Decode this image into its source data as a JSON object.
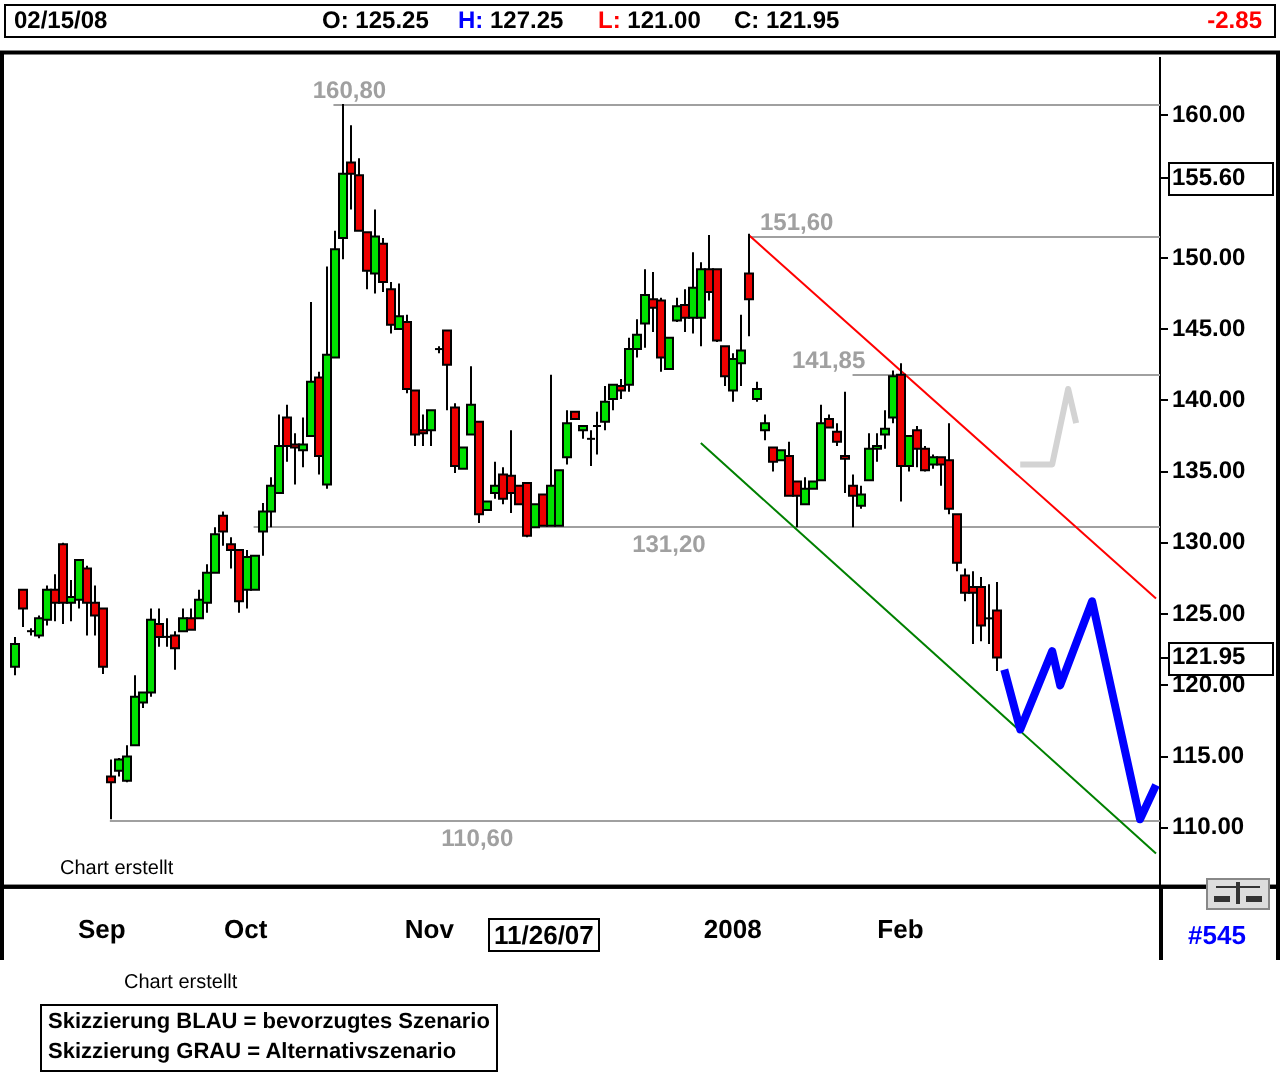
{
  "chart_data": {
    "type": "candlestick",
    "categories": [
      null,
      null,
      null,
      null,
      null,
      null,
      null,
      null,
      null,
      null,
      null,
      "Sep",
      null,
      null,
      null,
      null,
      null,
      null,
      null,
      null,
      null,
      null,
      null,
      null,
      null,
      null,
      null,
      null,
      null,
      "Oct",
      null,
      null,
      null,
      null,
      null,
      null,
      null,
      null,
      null,
      null,
      null,
      null,
      null,
      null,
      null,
      null,
      null,
      null,
      null,
      null,
      null,
      null,
      "Nov",
      null,
      null,
      null,
      null,
      null,
      null,
      null,
      null,
      null,
      null,
      null,
      null,
      null,
      null,
      null,
      null,
      null,
      null,
      null,
      null,
      null,
      null,
      null,
      null,
      null,
      null,
      null,
      null,
      null,
      null,
      null,
      null,
      null,
      null,
      null,
      null,
      null,
      "2008",
      null,
      null,
      null,
      null,
      null,
      null,
      null,
      null,
      null,
      null,
      null,
      null,
      null,
      null,
      null,
      null,
      null,
      null,
      null,
      null,
      "Feb",
      null,
      null,
      null,
      null,
      null,
      null,
      null,
      null,
      null,
      null,
      null,
      null,
      null,
      null,
      null,
      null,
      null,
      null,
      null,
      null,
      null,
      null,
      null,
      null,
      null,
      null,
      null,
      null,
      null,
      null,
      null,
      null
    ],
    "ohlc": [
      [
        121.3,
        123.4,
        120.7,
        122.9
      ],
      [
        126.7,
        126.7,
        124.1,
        125.4
      ],
      [
        123.8,
        124.0,
        123.5,
        123.8
      ],
      [
        123.5,
        124.9,
        123.3,
        124.7
      ],
      [
        124.6,
        127.0,
        124.2,
        126.7
      ],
      [
        126.7,
        127.8,
        124.5,
        125.8
      ],
      [
        129.9,
        130.0,
        124.3,
        125.8
      ],
      [
        125.8,
        127.4,
        124.5,
        126.2
      ],
      [
        126.0,
        128.8,
        125.4,
        128.8
      ],
      [
        128.2,
        128.4,
        123.5,
        125.8
      ],
      [
        125.8,
        127.0,
        123.5,
        124.9
      ],
      [
        125.4,
        125.4,
        120.8,
        121.3
      ],
      [
        113.6,
        114.8,
        110.6,
        113.2
      ],
      [
        114.0,
        114.9,
        113.6,
        114.8
      ],
      [
        113.3,
        115.8,
        113.2,
        115.0
      ],
      [
        115.8,
        120.7,
        115.8,
        119.2
      ],
      [
        118.8,
        119.5,
        118.4,
        119.5
      ],
      [
        119.5,
        125.4,
        119.2,
        124.6
      ],
      [
        124.3,
        125.4,
        122.7,
        123.4
      ],
      [
        123.4,
        124.7,
        122.7,
        123.3
      ],
      [
        123.5,
        123.8,
        121.1,
        122.6
      ],
      [
        123.8,
        125.4,
        123.8,
        124.7
      ],
      [
        124.7,
        125.4,
        123.9,
        123.9
      ],
      [
        124.7,
        126.7,
        124.7,
        126.0
      ],
      [
        125.8,
        128.5,
        125.1,
        127.9
      ],
      [
        127.9,
        131.1,
        127.9,
        130.6
      ],
      [
        131.9,
        132.2,
        129.8,
        130.8
      ],
      [
        129.9,
        130.4,
        128.2,
        129.5
      ],
      [
        129.5,
        129.5,
        125.1,
        125.9
      ],
      [
        126.7,
        129.5,
        125.4,
        129.0
      ],
      [
        126.7,
        129.1,
        126.7,
        129.1
      ],
      [
        130.8,
        132.8,
        129.1,
        132.2
      ],
      [
        132.2,
        134.6,
        131.1,
        134.0
      ],
      [
        133.5,
        139.0,
        133.5,
        136.8
      ],
      [
        138.8,
        139.7,
        135.7,
        136.8
      ],
      [
        136.9,
        137.7,
        134.1,
        136.7
      ],
      [
        136.5,
        138.8,
        135.3,
        136.9
      ],
      [
        137.5,
        146.9,
        137.5,
        141.3
      ],
      [
        141.6,
        142.0,
        134.8,
        136.1
      ],
      [
        134.1,
        149.4,
        133.8,
        143.2
      ],
      [
        143.0,
        151.9,
        143.0,
        150.6
      ],
      [
        151.4,
        160.8,
        149.9,
        155.9
      ],
      [
        156.7,
        159.3,
        153.4,
        155.9
      ],
      [
        155.8,
        157.0,
        151.9,
        151.9
      ],
      [
        151.8,
        151.8,
        147.8,
        149.1
      ],
      [
        148.9,
        153.4,
        147.5,
        151.5
      ],
      [
        151.0,
        151.4,
        147.6,
        148.3
      ],
      [
        147.8,
        148.3,
        144.7,
        145.3
      ],
      [
        145.0,
        148.2,
        145.0,
        145.9
      ],
      [
        145.5,
        146.0,
        140.5,
        140.8
      ],
      [
        140.7,
        140.7,
        136.8,
        137.6
      ],
      [
        137.9,
        139.0,
        136.8,
        137.7
      ],
      [
        137.9,
        139.3,
        136.8,
        139.3
      ],
      [
        143.6,
        143.8,
        143.3,
        143.5
      ],
      [
        144.9,
        144.9,
        139.3,
        142.5
      ],
      [
        139.5,
        139.8,
        134.9,
        135.4
      ],
      [
        135.2,
        136.7,
        135.2,
        136.7
      ],
      [
        137.6,
        142.4,
        137.6,
        139.7
      ],
      [
        138.5,
        138.5,
        131.4,
        132.0
      ],
      [
        132.3,
        132.9,
        132.3,
        132.9
      ],
      [
        133.5,
        135.7,
        133.1,
        134.0
      ],
      [
        134.8,
        135.3,
        132.7,
        133.1
      ],
      [
        134.7,
        137.9,
        132.1,
        133.5
      ],
      [
        134.0,
        134.0,
        132.7,
        132.7
      ],
      [
        134.2,
        134.2,
        130.4,
        130.5
      ],
      [
        131.1,
        132.7,
        131.1,
        132.7
      ],
      [
        133.4,
        133.4,
        131.2,
        131.2
      ],
      [
        131.2,
        141.8,
        131.2,
        134.0
      ],
      [
        131.2,
        135.1,
        131.2,
        135.1
      ],
      [
        136.0,
        139.3,
        135.5,
        138.4
      ],
      [
        139.2,
        139.2,
        138.7,
        138.7
      ],
      [
        137.9,
        138.2,
        137.3,
        138.2
      ],
      [
        137.3,
        137.9,
        135.4,
        137.3
      ],
      [
        138.2,
        139.2,
        136.2,
        138.2
      ],
      [
        138.5,
        141.0,
        137.9,
        139.9
      ],
      [
        140.1,
        141.1,
        139.3,
        141.1
      ],
      [
        141.0,
        141.5,
        140.1,
        140.7
      ],
      [
        141.1,
        144.4,
        140.6,
        143.6
      ],
      [
        143.6,
        145.7,
        143.0,
        144.6
      ],
      [
        145.4,
        149.2,
        143.7,
        147.4
      ],
      [
        147.1,
        149.0,
        144.8,
        146.5
      ],
      [
        147.0,
        147.2,
        142.0,
        143.0
      ],
      [
        142.2,
        144.4,
        142.2,
        144.4
      ],
      [
        145.6,
        147.2,
        145.5,
        146.6
      ],
      [
        146.7,
        147.8,
        144.8,
        145.8
      ],
      [
        145.8,
        150.4,
        144.7,
        147.9
      ],
      [
        145.8,
        149.7,
        143.8,
        149.2
      ],
      [
        149.2,
        151.6,
        147.0,
        147.6
      ],
      [
        149.2,
        149.2,
        144.1,
        144.2
      ],
      [
        143.8,
        143.8,
        141.0,
        141.7
      ],
      [
        140.7,
        143.3,
        139.9,
        142.9
      ],
      [
        142.6,
        146.0,
        141.0,
        143.5
      ],
      [
        148.9,
        151.7,
        144.5,
        147.1
      ],
      [
        140.1,
        141.3,
        139.9,
        140.8
      ],
      [
        137.9,
        139.0,
        137.2,
        138.4
      ],
      [
        136.7,
        136.7,
        135.0,
        135.7
      ],
      [
        135.8,
        136.5,
        135.8,
        136.5
      ],
      [
        136.1,
        137.1,
        133.3,
        133.3
      ],
      [
        134.3,
        134.3,
        131.1,
        133.3
      ],
      [
        132.7,
        134.6,
        132.7,
        133.8
      ],
      [
        133.8,
        134.3,
        133.8,
        134.3
      ],
      [
        134.4,
        139.7,
        134.4,
        138.4
      ],
      [
        138.7,
        139.0,
        138.1,
        138.1
      ],
      [
        137.8,
        138.4,
        136.8,
        137.1
      ],
      [
        136.1,
        140.6,
        133.5,
        135.9
      ],
      [
        134.0,
        134.8,
        131.1,
        133.3
      ],
      [
        132.6,
        134.0,
        132.4,
        133.4
      ],
      [
        134.4,
        137.7,
        134.4,
        136.6
      ],
      [
        136.6,
        137.7,
        135.7,
        136.8
      ],
      [
        137.6,
        139.3,
        136.6,
        138.0
      ],
      [
        138.8,
        142.1,
        138.4,
        141.7
      ],
      [
        141.8,
        142.6,
        132.9,
        135.4
      ],
      [
        135.4,
        137.5,
        135.0,
        137.5
      ],
      [
        137.9,
        138.2,
        135.3,
        136.6
      ],
      [
        136.6,
        136.8,
        135.0,
        135.1
      ],
      [
        135.5,
        136.2,
        135.2,
        136.0
      ],
      [
        136.0,
        136.0,
        134.0,
        135.5
      ],
      [
        135.8,
        138.4,
        132.0,
        132.4
      ],
      [
        132.0,
        132.0,
        128.0,
        128.6
      ],
      [
        127.7,
        128.2,
        125.9,
        126.5
      ],
      [
        126.9,
        128.0,
        122.9,
        126.5
      ],
      [
        126.9,
        127.6,
        123.1,
        124.2
      ],
      [
        124.7,
        127.1,
        122.9,
        124.7
      ],
      [
        125.25,
        127.25,
        121.0,
        121.95
      ],
      null,
      null,
      null,
      null,
      null,
      null,
      null,
      null,
      null,
      null,
      null,
      null,
      null,
      null,
      null,
      null,
      null,
      null,
      null,
      null
    ],
    "series": [
      {
        "type": "line",
        "color": "#0000ff",
        "values": [
          null,
          null,
          null,
          null,
          null,
          null,
          null,
          null,
          null,
          null,
          null,
          null,
          null,
          null,
          null,
          null,
          null,
          null,
          null,
          null,
          null,
          null,
          null,
          null,
          null,
          null,
          null,
          null,
          null,
          null,
          null,
          null,
          null,
          null,
          null,
          null,
          null,
          null,
          null,
          null,
          null,
          null,
          null,
          null,
          null,
          null,
          null,
          null,
          null,
          null,
          null,
          null,
          null,
          null,
          null,
          null,
          null,
          null,
          null,
          null,
          null,
          null,
          null,
          null,
          null,
          null,
          null,
          null,
          null,
          null,
          null,
          null,
          null,
          null,
          null,
          null,
          null,
          null,
          null,
          null,
          null,
          null,
          null,
          null,
          null,
          null,
          null,
          null,
          null,
          null,
          null,
          null,
          null,
          null,
          null,
          null,
          null,
          null,
          null,
          null,
          null,
          null,
          null,
          null,
          null,
          null,
          null,
          null,
          null,
          null,
          null,
          null,
          null,
          null,
          null,
          null,
          null,
          null,
          null,
          null,
          null,
          null,
          null,
          null,
          121.1,
          null,
          116.9,
          null,
          null,
          null,
          122.4,
          120.0,
          null,
          null,
          null,
          125.9,
          null,
          null,
          null,
          null,
          null,
          110.6,
          null,
          113.0
        ]
      },
      {
        "type": "line",
        "color": "#d3d3d3",
        "values": [
          null,
          null,
          null,
          null,
          null,
          null,
          null,
          null,
          null,
          null,
          null,
          null,
          null,
          null,
          null,
          null,
          null,
          null,
          null,
          null,
          null,
          null,
          null,
          null,
          null,
          null,
          null,
          null,
          null,
          null,
          null,
          null,
          null,
          null,
          null,
          null,
          null,
          null,
          null,
          null,
          null,
          null,
          null,
          null,
          null,
          null,
          null,
          null,
          null,
          null,
          null,
          null,
          null,
          null,
          null,
          null,
          null,
          null,
          null,
          null,
          null,
          null,
          null,
          null,
          null,
          null,
          null,
          null,
          null,
          null,
          null,
          null,
          null,
          null,
          null,
          null,
          null,
          null,
          null,
          null,
          null,
          null,
          null,
          null,
          null,
          null,
          null,
          null,
          null,
          null,
          null,
          null,
          null,
          null,
          null,
          null,
          null,
          null,
          null,
          null,
          null,
          null,
          null,
          null,
          null,
          null,
          null,
          null,
          null,
          null,
          null,
          null,
          null,
          null,
          null,
          null,
          null,
          null,
          null,
          null,
          null,
          null,
          null,
          null,
          null,
          null,
          135.5,
          null,
          null,
          null,
          135.5,
          null,
          140.8,
          138.4,
          null,
          null,
          null,
          null,
          null,
          null,
          null,
          null,
          null,
          null
        ]
      },
      {
        "type": "line",
        "color": "#ff0000",
        "values": [
          null,
          null,
          null,
          null,
          null,
          null,
          null,
          null,
          null,
          null,
          null,
          null,
          null,
          null,
          null,
          null,
          null,
          null,
          null,
          null,
          null,
          null,
          null,
          null,
          null,
          null,
          null,
          null,
          null,
          null,
          null,
          null,
          null,
          null,
          null,
          null,
          null,
          null,
          null,
          null,
          null,
          null,
          null,
          null,
          null,
          null,
          null,
          null,
          null,
          null,
          null,
          null,
          null,
          null,
          null,
          null,
          null,
          null,
          null,
          null,
          null,
          null,
          null,
          null,
          null,
          null,
          null,
          null,
          null,
          null,
          null,
          null,
          null,
          null,
          null,
          null,
          null,
          null,
          null,
          null,
          null,
          null,
          null,
          null,
          null,
          null,
          null,
          null,
          null,
          null,
          null,
          null,
          151.6,
          null,
          null,
          null,
          null,
          null,
          null,
          null,
          null,
          null,
          null,
          null,
          null,
          null,
          null,
          null,
          null,
          null,
          null,
          null,
          null,
          null,
          null,
          null,
          null,
          null,
          null,
          null,
          null,
          null,
          null,
          null,
          null,
          null,
          null,
          null,
          null,
          null,
          null,
          null,
          null,
          null,
          null,
          null,
          null,
          null,
          null,
          null,
          null,
          null,
          null,
          126.1
        ]
      },
      {
        "type": "line",
        "color": "#008000",
        "values": [
          null,
          null,
          null,
          null,
          null,
          null,
          null,
          null,
          null,
          null,
          null,
          null,
          null,
          null,
          null,
          null,
          null,
          null,
          null,
          null,
          null,
          null,
          null,
          null,
          null,
          null,
          null,
          null,
          null,
          null,
          null,
          null,
          null,
          null,
          null,
          null,
          null,
          null,
          null,
          null,
          null,
          null,
          null,
          null,
          null,
          null,
          null,
          null,
          null,
          null,
          null,
          null,
          null,
          null,
          null,
          null,
          null,
          null,
          null,
          null,
          null,
          null,
          null,
          null,
          null,
          null,
          null,
          null,
          null,
          null,
          null,
          null,
          null,
          null,
          null,
          null,
          null,
          null,
          null,
          null,
          null,
          null,
          null,
          null,
          null,
          null,
          137.0,
          null,
          null,
          null,
          null,
          null,
          null,
          null,
          null,
          null,
          null,
          null,
          null,
          null,
          null,
          null,
          null,
          null,
          null,
          null,
          null,
          null,
          null,
          null,
          null,
          null,
          null,
          null,
          null,
          null,
          null,
          null,
          null,
          null,
          null,
          null,
          null,
          null,
          null,
          null,
          null,
          null,
          null,
          null,
          null,
          null,
          null,
          null,
          null,
          null,
          null,
          null,
          null,
          null,
          null,
          null,
          null,
          108.2
        ]
      }
    ],
    "ylim": [
      106,
      164
    ],
    "yticks": [
      {
        "value": 110,
        "label": "110.00"
      },
      {
        "value": 115,
        "label": "115.00"
      },
      {
        "value": 120,
        "label": "120.00"
      },
      {
        "value": 121.95,
        "label": "121.95"
      },
      {
        "value": 125,
        "label": "125.00"
      },
      {
        "value": 130,
        "label": "130.00"
      },
      {
        "value": 135,
        "label": "135.00"
      },
      {
        "value": 140,
        "label": "140.00"
      },
      {
        "value": 145,
        "label": "145.00"
      },
      {
        "value": 150,
        "label": "150.00"
      },
      {
        "value": 155.6,
        "label": "155.60"
      },
      {
        "value": 160,
        "label": "160.00"
      }
    ],
    "ref_lines": [
      {
        "axis": "y",
        "value": 160.8,
        "label": "160,80",
        "color": "#a0a0a0"
      },
      {
        "axis": "y",
        "value": 151.6,
        "label": "151,60",
        "color": "#a0a0a0"
      },
      {
        "axis": "y",
        "value": 141.85,
        "label": "141,85",
        "color": "#a0a0a0"
      },
      {
        "axis": "y",
        "value": 131.2,
        "label": "131,20",
        "color": "#a0a0a0"
      },
      {
        "axis": "y",
        "value": 110.6,
        "label": "110,60",
        "color": "#a0a0a0"
      }
    ],
    "annotations": [
      "02/15/08",
      "O: 125.25",
      "H: 127.25",
      "L: 121.00",
      "C: 121.95",
      "-2.85",
      "Chart erstellt",
      "11/26/07",
      "#545",
      "Chart erstellt",
      "Skizzierung BLAU = bevorzugtes Szenario",
      "Skizzierung GRAU = Alternativszenario"
    ],
    "legend": false
  }
}
